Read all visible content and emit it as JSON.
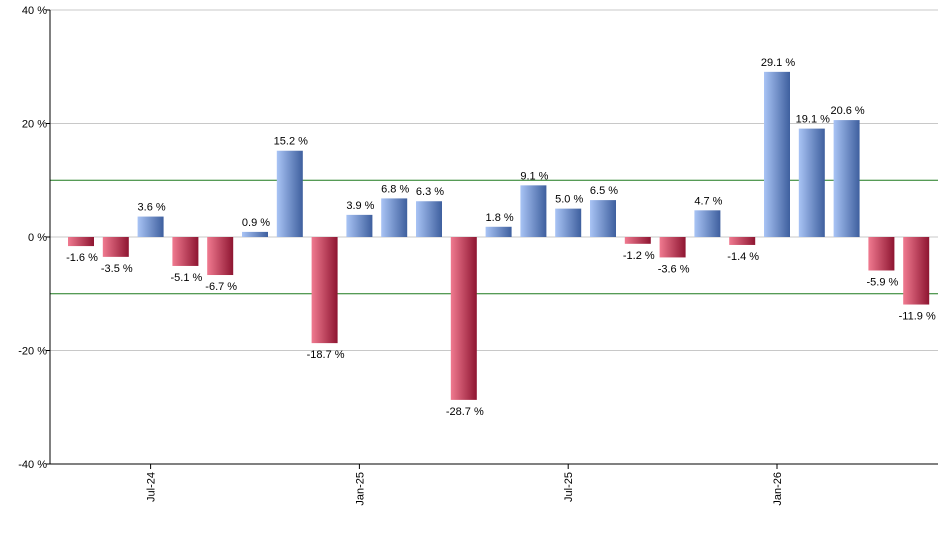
{
  "chart_data": {
    "type": "bar",
    "ylim": [
      -40,
      40
    ],
    "yticks": [
      -40,
      -20,
      0,
      20,
      40
    ],
    "ytick_suffix": " %",
    "grid": true,
    "reference_lines": [
      10,
      -10
    ],
    "values": [
      -1.6,
      -3.5,
      3.6,
      -5.1,
      -6.7,
      0.9,
      15.2,
      -18.7,
      3.9,
      6.8,
      6.3,
      -28.7,
      1.8,
      9.1,
      5.0,
      6.5,
      -1.2,
      -3.6,
      4.7,
      -1.4,
      29.1,
      19.1,
      20.6,
      -5.9,
      -11.9
    ],
    "labels": [
      "-1.6 %",
      "-3.5 %",
      "3.6 %",
      "-5.1 %",
      "-6.7 %",
      "0.9 %",
      "15.2 %",
      "-18.7 %",
      "3.9 %",
      "6.8 %",
      "6.3 %",
      "-28.7 %",
      "1.8 %",
      "9.1 %",
      "5.0 %",
      "6.5 %",
      "-1.2 %",
      "-3.6 %",
      "4.7 %",
      "-1.4 %",
      "29.1 %",
      "19.1 %",
      "20.6 %",
      "-5.9 %",
      "-11.9 %"
    ],
    "xticks": [
      {
        "index": 2,
        "label": "Jul-24"
      },
      {
        "index": 8,
        "label": "Jan-25"
      },
      {
        "index": 14,
        "label": "Jul-25"
      },
      {
        "index": 20,
        "label": "Jan-26"
      }
    ],
    "colors": {
      "positive_light": "#a9c4f5",
      "positive_dark": "#3e5f9e",
      "negative_light": "#f07a90",
      "negative_dark": "#8e1531",
      "grid": "#c8c8c8",
      "reference": "#1f7a1f",
      "axis": "#000000"
    }
  }
}
